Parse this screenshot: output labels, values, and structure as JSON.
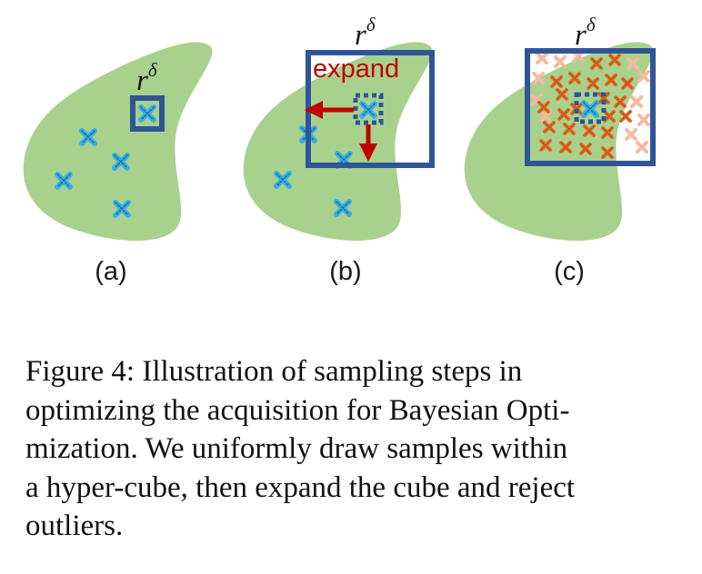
{
  "figure": {
    "panel_labels": [
      "(a)",
      "(b)",
      "(c)"
    ],
    "cube_label_base": "r",
    "cube_label_sup": "δ",
    "expand_label": "expand",
    "colors": {
      "region": "#a9d18e",
      "cube": "#2f5597",
      "sample": "#3aaee0",
      "arrow": "#c00000",
      "candidate": "#e06820",
      "rejected": "#f4b9a0"
    }
  },
  "caption": {
    "lines": [
      "Figure 4: Illustration of sampling steps in",
      "optimizing the acquisition for Bayesian Opti-",
      "mization. We uniformly draw samples within",
      "a hyper-cube, then expand the cube and reject",
      "outliers."
    ]
  }
}
